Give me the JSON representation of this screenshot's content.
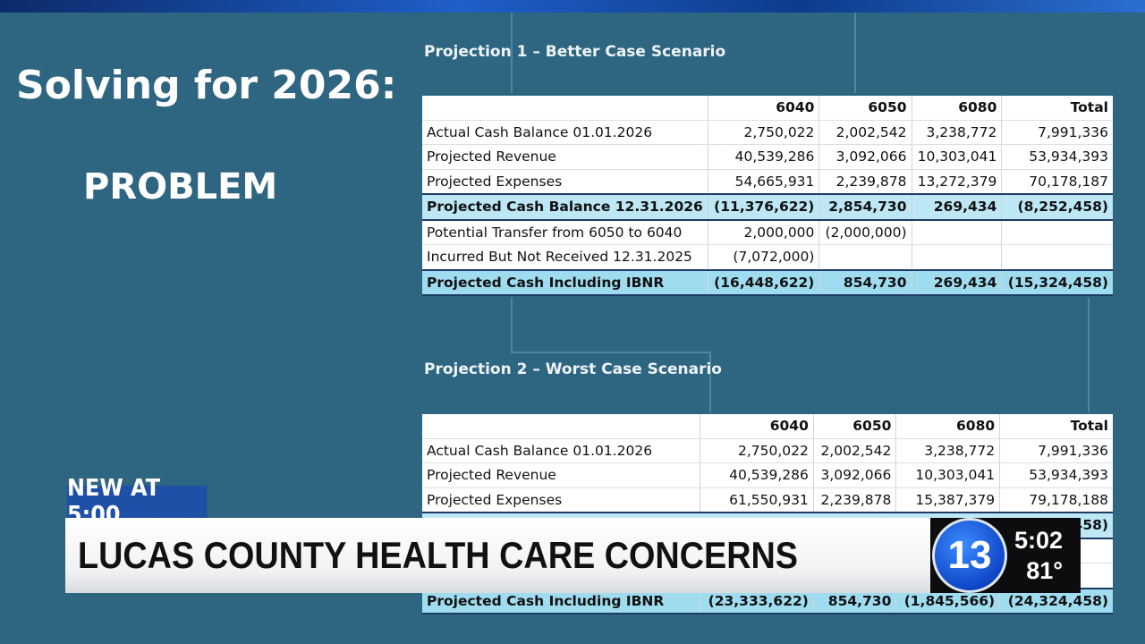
{
  "slide": {
    "title": "Solving for 2026:",
    "subtitle": "PROBLEM"
  },
  "projection1": {
    "heading": "Projection 1 – Better Case Scenario",
    "columns": [
      "",
      "6040",
      "6050",
      "6080",
      "Total"
    ],
    "rows": [
      {
        "label": "Actual Cash Balance 01.01.2026",
        "values": [
          "2,750,022",
          "2,002,542",
          "3,238,772",
          "7,991,336"
        ]
      },
      {
        "label": "Projected Revenue",
        "values": [
          "40,539,286",
          "3,092,066",
          "10,303,041",
          "53,934,393"
        ]
      },
      {
        "label": "Projected Expenses",
        "values": [
          "54,665,931",
          "2,239,878",
          "13,272,379",
          "70,178,187"
        ]
      },
      {
        "label": "Projected Cash Balance 12.31.2026",
        "values": [
          "(11,376,622)",
          "2,854,730",
          "269,434",
          "(8,252,458)"
        ]
      },
      {
        "label": "Potential Transfer from 6050 to 6040",
        "values": [
          "2,000,000",
          "(2,000,000)",
          "",
          ""
        ]
      },
      {
        "label": "Incurred But Not Received  12.31.2025",
        "values": [
          "(7,072,000)",
          "",
          "",
          ""
        ]
      },
      {
        "label": "Projected Cash Including IBNR",
        "values": [
          "(16,448,622)",
          "854,730",
          "269,434",
          "(15,324,458)"
        ]
      }
    ]
  },
  "projection2": {
    "heading": "Projection 2 – Worst Case Scenario",
    "columns": [
      "",
      "6040",
      "6050",
      "6080",
      "Total"
    ],
    "rows": [
      {
        "label": "Actual Cash Balance 01.01.2026",
        "values": [
          "2,750,022",
          "2,002,542",
          "3,238,772",
          "7,991,336"
        ]
      },
      {
        "label": "Projected Revenue",
        "values": [
          "40,539,286",
          "3,092,066",
          "10,303,041",
          "53,934,393"
        ]
      },
      {
        "label": "Projected Expenses",
        "values": [
          "61,550,931",
          "2,239,878",
          "15,387,379",
          "79,178,188"
        ]
      },
      {
        "label": "",
        "values": [
          "",
          "",
          "",
          "458)"
        ]
      },
      {
        "label": "",
        "values": [
          "",
          "",
          "",
          ""
        ]
      },
      {
        "label": "",
        "values": [
          "",
          "",
          "",
          ""
        ]
      },
      {
        "label": "Projected Cash Including IBNR",
        "values": [
          "(23,333,622)",
          "854,730",
          "(1,845,566)",
          "(24,324,458)"
        ]
      }
    ]
  },
  "lower_third": {
    "tag": "NEW AT 5:00",
    "headline": "LUCAS COUNTY HEALTH CARE CONCERNS"
  },
  "bug": {
    "logo": "13",
    "time": "5:02",
    "temperature": "81°"
  }
}
